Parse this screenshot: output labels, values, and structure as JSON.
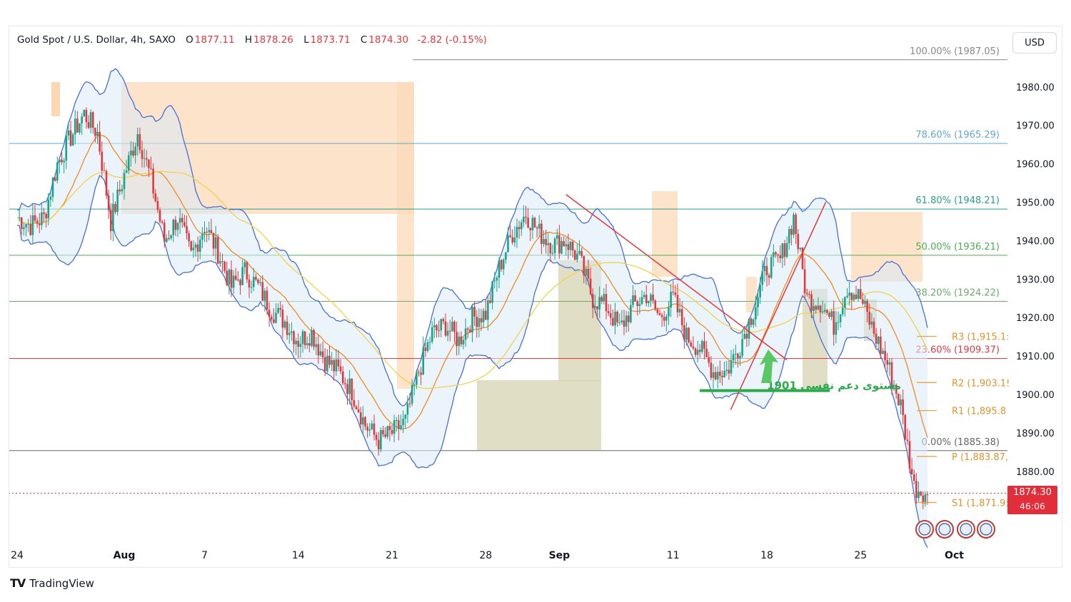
{
  "header": {
    "symbol": "Gold Spot / U.S. Dollar, 4h, SAXO",
    "open_label": "O",
    "open": "1877.11",
    "high_label": "H",
    "high": "1878.26",
    "low_label": "L",
    "low": "1873.71",
    "close_label": "C",
    "close": "1874.30",
    "change": "-2.82 (-0.15%)"
  },
  "currency": "USD",
  "brand": "TradingView",
  "last_price": {
    "price": "1874.30",
    "countdown": "46:06"
  },
  "chart_data": {
    "type": "candlestick",
    "title": "Gold Spot / U.S. Dollar, 4h, SAXO",
    "y_ticks": [
      1880,
      1890,
      1900,
      1910,
      1920,
      1930,
      1940,
      1950,
      1960,
      1970,
      1980
    ],
    "y_tick_labels": [
      "1880.00",
      "1890.00",
      "1900.00",
      "1910.00",
      "1920.00",
      "1930.00",
      "1940.00",
      "1950.00",
      "1960.00",
      "1970.00",
      "1980.00"
    ],
    "x_ticks": [
      {
        "label": "24",
        "day": 0,
        "bold": false
      },
      {
        "label": "Aug",
        "day": 8,
        "bold": true
      },
      {
        "label": "7",
        "day": 14,
        "bold": false
      },
      {
        "label": "14",
        "day": 21,
        "bold": false
      },
      {
        "label": "21",
        "day": 28,
        "bold": false
      },
      {
        "label": "28",
        "day": 35,
        "bold": false
      },
      {
        "label": "Sep",
        "day": 40.5,
        "bold": true
      },
      {
        "label": "11",
        "day": 49,
        "bold": false
      },
      {
        "label": "18",
        "day": 56,
        "bold": false
      },
      {
        "label": "25",
        "day": 63,
        "bold": false
      },
      {
        "label": "Oct",
        "day": 70,
        "bold": true
      }
    ],
    "fibonacci": [
      {
        "label": "100.00% (1987.05)",
        "value": 1987.05,
        "color": "#888888"
      },
      {
        "label": "78.60% (1965.29)",
        "value": 1965.29,
        "color": "#5fa8d3"
      },
      {
        "label": "61.80% (1948.21)",
        "value": 1948.21,
        "color": "#2a9d8f"
      },
      {
        "label": "50.00% (1936.21)",
        "value": 1936.21,
        "color": "#4caf50"
      },
      {
        "label": "38.20% (1924.22)",
        "value": 1924.22,
        "color": "#6aaa6a"
      },
      {
        "label": "23.60% (1909.37)",
        "value": 1909.37,
        "color": "#e0393e"
      },
      {
        "label": "0.00% (1885.38)",
        "value": 1885.38,
        "color": "#666666"
      }
    ],
    "pivots": [
      {
        "label": "R3 (1,915.1:",
        "value": 1915.1
      },
      {
        "label": "R2 (1,903.1!",
        "value": 1903.1
      },
      {
        "label": "R1 (1,895.8",
        "value": 1895.8
      },
      {
        "label": "P (1,883.87,",
        "value": 1883.87
      },
      {
        "label": "S1 (1,871.9:",
        "value": 1871.9
      }
    ],
    "support_annotation": {
      "text": "مستوى دعم نفسي 1901",
      "value": 1901
    },
    "close_line": 1874.3,
    "path_points": [
      [
        0,
        1946
      ],
      [
        1,
        1944
      ],
      [
        2,
        1946
      ],
      [
        3,
        1960
      ],
      [
        4,
        1967
      ],
      [
        5,
        1973
      ],
      [
        6,
        1968
      ],
      [
        7,
        1945
      ],
      [
        8,
        1957
      ],
      [
        9,
        1968
      ],
      [
        10,
        1956
      ],
      [
        11,
        1940
      ],
      [
        12,
        1946
      ],
      [
        13,
        1936
      ],
      [
        14,
        1944
      ],
      [
        15,
        1937
      ],
      [
        16,
        1928
      ],
      [
        17,
        1932
      ],
      [
        18,
        1928
      ],
      [
        19,
        1922
      ],
      [
        20,
        1919
      ],
      [
        21,
        1914
      ],
      [
        22,
        1916
      ],
      [
        23,
        1909
      ],
      [
        24,
        1906
      ],
      [
        25,
        1901
      ],
      [
        26,
        1892
      ],
      [
        27,
        1888
      ],
      [
        28,
        1890
      ],
      [
        29,
        1893
      ],
      [
        30,
        1906
      ],
      [
        31,
        1916
      ],
      [
        32,
        1918
      ],
      [
        33,
        1914
      ],
      [
        34,
        1920
      ],
      [
        35,
        1921
      ],
      [
        36,
        1933
      ],
      [
        37,
        1942
      ],
      [
        38,
        1947
      ],
      [
        39,
        1942
      ],
      [
        40,
        1939
      ],
      [
        41,
        1940
      ],
      [
        42,
        1935
      ],
      [
        43,
        1925
      ],
      [
        44,
        1923
      ],
      [
        45,
        1917
      ],
      [
        46,
        1923
      ],
      [
        47,
        1926
      ],
      [
        48,
        1920
      ],
      [
        49,
        1925
      ],
      [
        50,
        1915
      ],
      [
        51,
        1912
      ],
      [
        52,
        1906
      ],
      [
        53,
        1906
      ],
      [
        54,
        1913
      ],
      [
        55,
        1922
      ],
      [
        56,
        1933
      ],
      [
        57,
        1935
      ],
      [
        58,
        1946
      ],
      [
        59,
        1925
      ],
      [
        60,
        1924
      ],
      [
        61,
        1918
      ],
      [
        62,
        1928
      ],
      [
        63,
        1925
      ],
      [
        64,
        1916
      ],
      [
        65,
        1908
      ],
      [
        66,
        1897
      ],
      [
        67,
        1876
      ],
      [
        68,
        1874
      ]
    ]
  }
}
